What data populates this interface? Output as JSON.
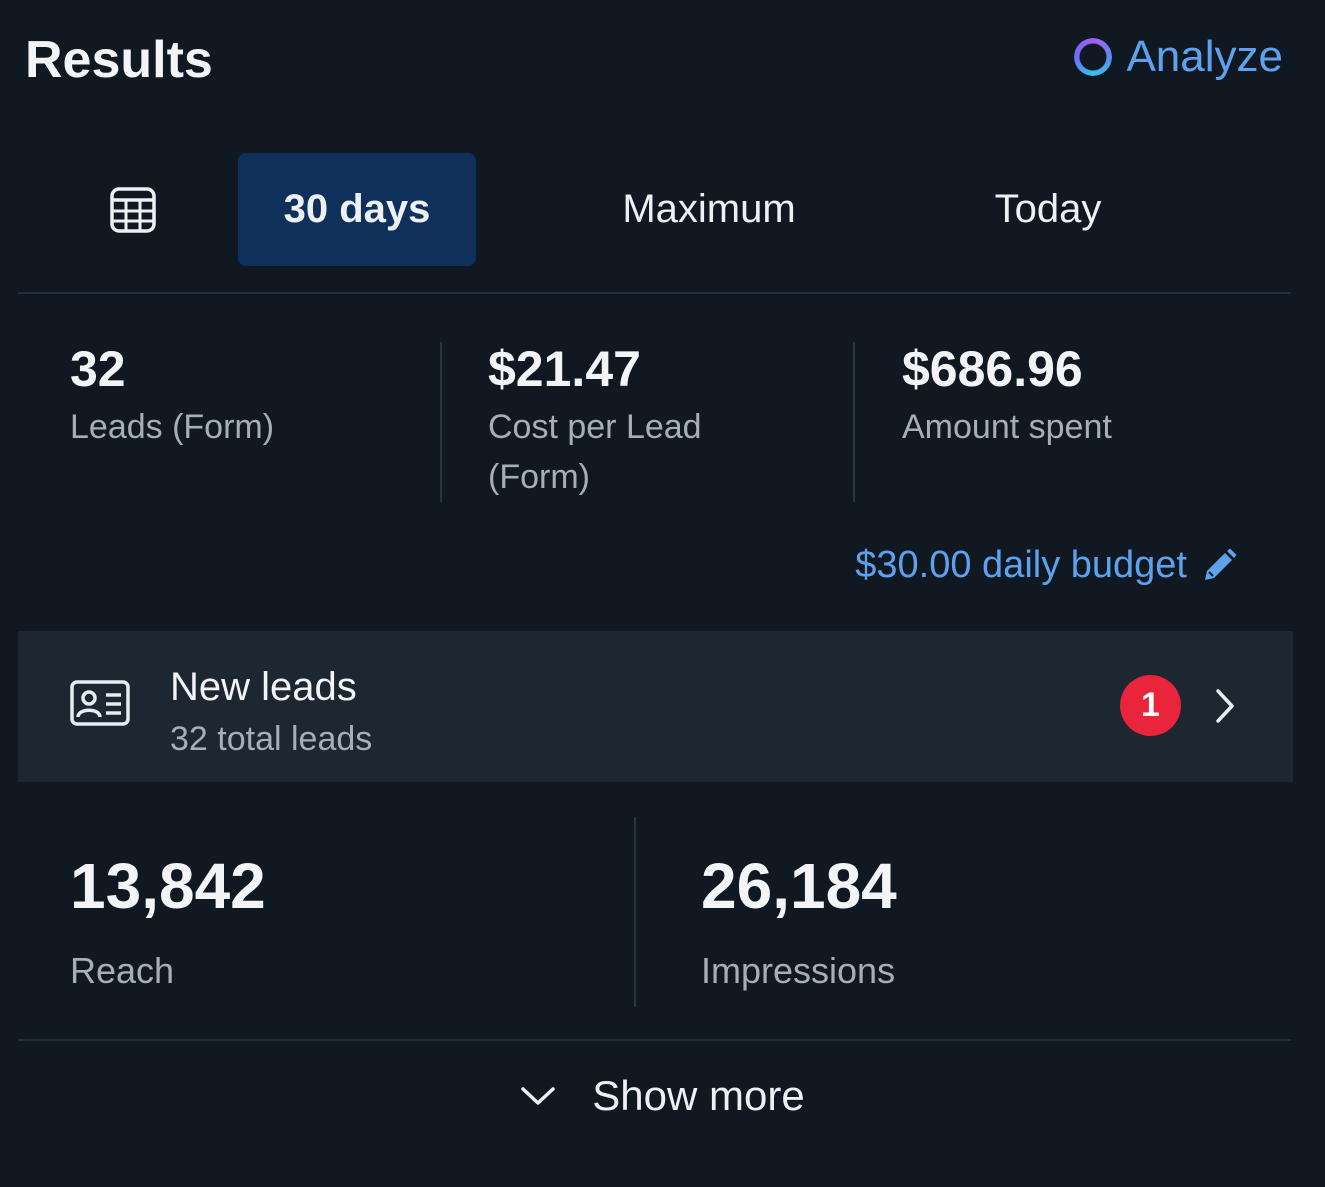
{
  "header": {
    "title": "Results",
    "analyze_label": "Analyze"
  },
  "tabs": [
    {
      "label": "30 days",
      "selected": true
    },
    {
      "label": "Maximum",
      "selected": false
    },
    {
      "label": "Today",
      "selected": false
    }
  ],
  "stats": [
    {
      "value": "32",
      "label": "Leads (Form)"
    },
    {
      "value": "$21.47",
      "label_line1": "Cost per Lead",
      "label_line2": "(Form)"
    },
    {
      "value": "$686.96",
      "label": "Amount spent"
    }
  ],
  "budget": {
    "label": "$30.00 daily budget"
  },
  "leads": {
    "title": "New leads",
    "subtitle": "32 total leads",
    "badge_count": "1"
  },
  "metrics": [
    {
      "value": "13,842",
      "label": "Reach"
    },
    {
      "value": "26,184",
      "label": "Impressions"
    }
  ],
  "footer": {
    "show_more_label": "Show more"
  },
  "colors": {
    "background": "#101922",
    "accent": "#5ea2ee",
    "selected_tab": "#0e305b",
    "badge": "#e8253a"
  }
}
